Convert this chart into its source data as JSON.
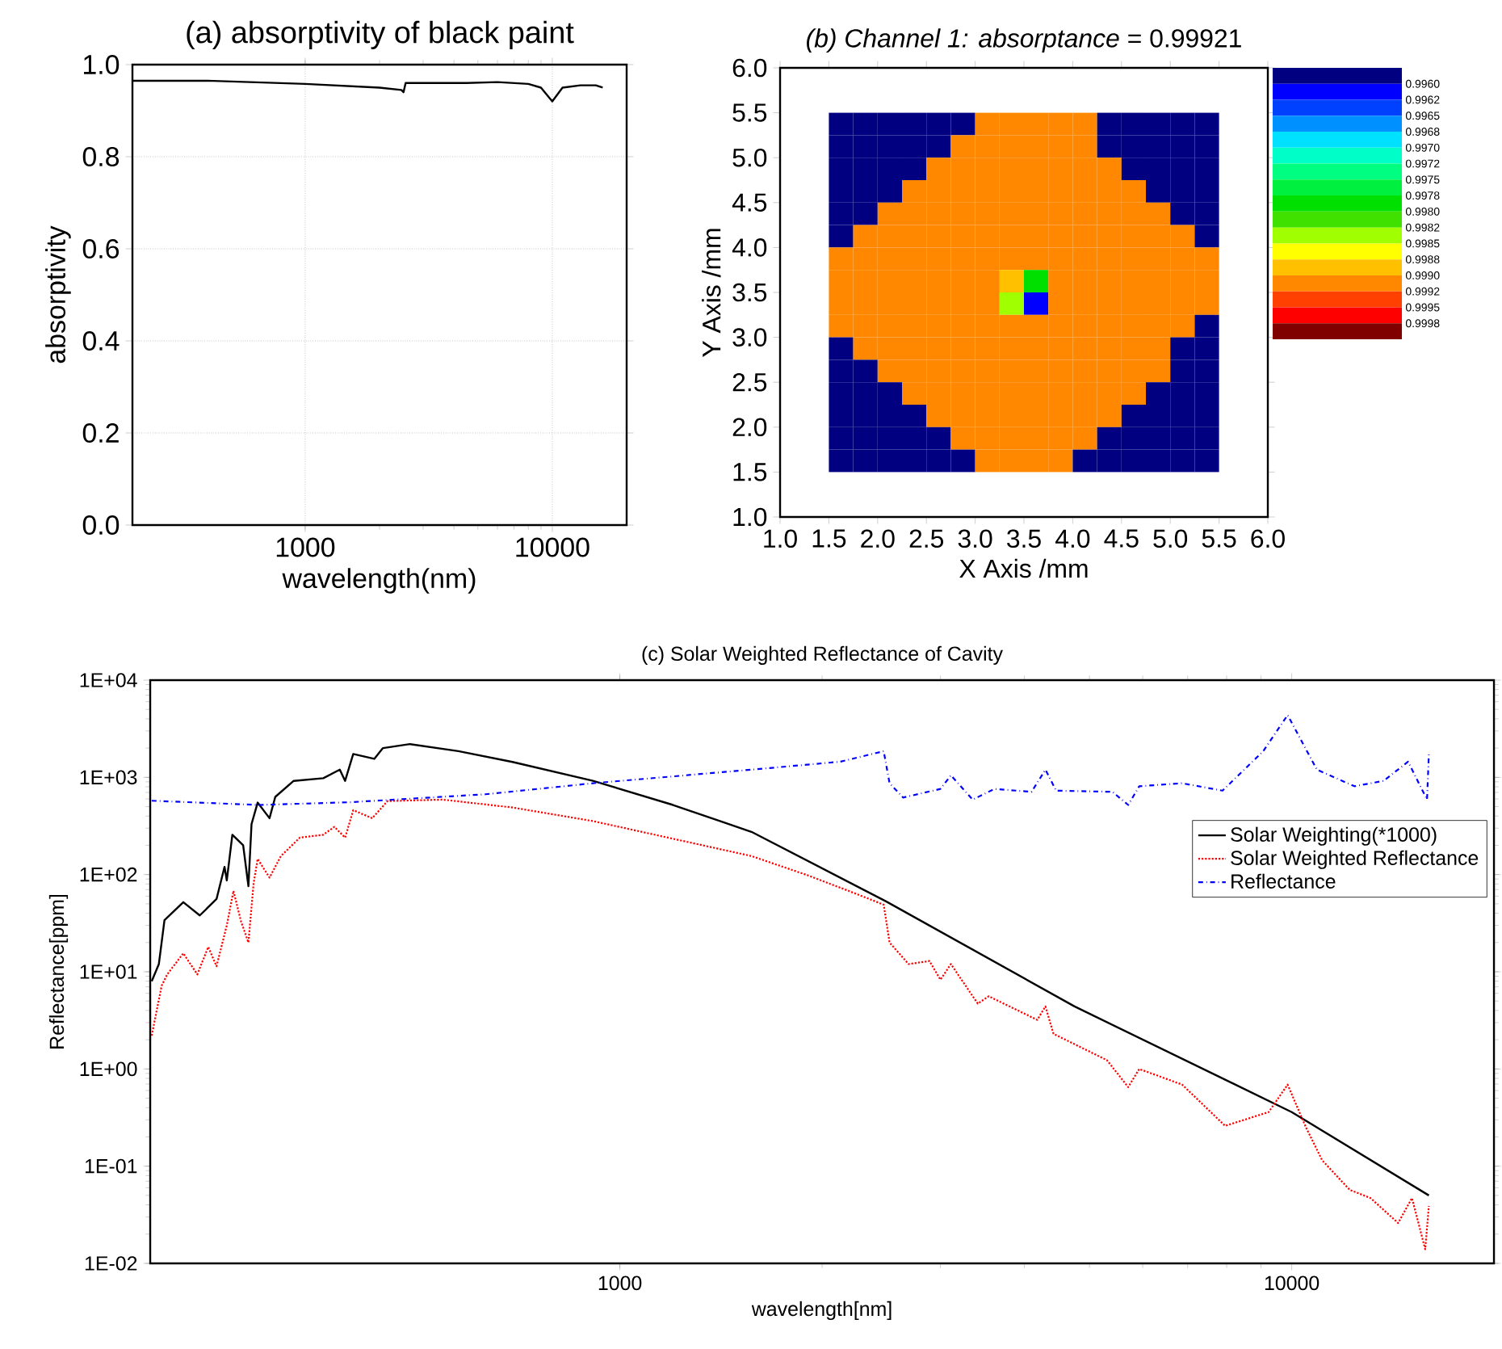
{
  "chart_data": [
    {
      "type": "line",
      "title": "(a) absorptivity of black paint",
      "xlabel": "wavelength(nm)",
      "ylabel": "absorptivity",
      "color": "#000000",
      "x": [
        200,
        400,
        1000,
        2000,
        2450,
        2500,
        2550,
        3000,
        4500,
        6000,
        8000,
        9000,
        10000,
        11000,
        13000,
        15000,
        16000
      ],
      "values": [
        0.965,
        0.965,
        0.958,
        0.95,
        0.945,
        0.94,
        0.96,
        0.96,
        0.96,
        0.962,
        0.958,
        0.95,
        0.92,
        0.95,
        0.955,
        0.955,
        0.95
      ],
      "xlim": [
        200,
        20000
      ],
      "ylim": [
        0,
        1
      ],
      "xticks": [
        1000,
        10000
      ],
      "yticks": [
        {
          "value": 0,
          "label": "0.0"
        },
        {
          "value": 0.2,
          "label": "0.2"
        },
        {
          "value": 0.4,
          "label": "0.4"
        },
        {
          "value": 0.6,
          "label": "0.6"
        },
        {
          "value": 0.8,
          "label": "0.8"
        },
        {
          "value": 1,
          "label": "1.0"
        }
      ],
      "log": "x",
      "grid": true
    },
    {
      "type": "heatmap",
      "title": "*(b) Channel 1: absorptance* = 0.99921",
      "xlabel": "X Axis /mm",
      "ylabel": "Y Axis /mm",
      "x": [
        1.625,
        1.875,
        2.125,
        2.375,
        2.625,
        2.875,
        3.125,
        3.375,
        3.625,
        3.875,
        4.125,
        4.375,
        4.625,
        4.875,
        5.125,
        5.375
      ],
      "y": [
        5.375,
        5.125,
        4.875,
        4.625,
        4.375,
        4.125,
        3.875,
        3.625,
        3.375,
        3.125,
        2.875,
        2.625,
        2.375,
        2.125,
        1.875,
        1.625
      ],
      "cells": [
        [
          0.9959,
          0.9959,
          0.9959,
          0.9959,
          0.9959,
          0.9959,
          0.9991,
          0.9991,
          0.9991,
          0.9991,
          0.9991,
          0.9959,
          0.9959,
          0.9959,
          0.9959,
          0.9959
        ],
        [
          0.9959,
          0.9959,
          0.9959,
          0.9959,
          0.9959,
          0.9991,
          0.9991,
          0.9991,
          0.9991,
          0.9991,
          0.9991,
          0.9959,
          0.9959,
          0.9959,
          0.9959,
          0.9959
        ],
        [
          0.9959,
          0.9959,
          0.9959,
          0.9959,
          0.9991,
          0.9991,
          0.9991,
          0.9991,
          0.9991,
          0.9991,
          0.9991,
          0.9991,
          0.9959,
          0.9959,
          0.9959,
          0.9959
        ],
        [
          0.9959,
          0.9959,
          0.9959,
          0.9991,
          0.9991,
          0.9991,
          0.9991,
          0.9991,
          0.9991,
          0.9991,
          0.9991,
          0.9991,
          0.9991,
          0.9959,
          0.9959,
          0.9959
        ],
        [
          0.9959,
          0.9959,
          0.9991,
          0.9991,
          0.9991,
          0.9991,
          0.9991,
          0.9991,
          0.9991,
          0.9991,
          0.9991,
          0.9991,
          0.9991,
          0.9991,
          0.9959,
          0.9959
        ],
        [
          0.9959,
          0.9991,
          0.9991,
          0.9991,
          0.9991,
          0.9991,
          0.9991,
          0.9991,
          0.9991,
          0.9991,
          0.9991,
          0.9991,
          0.9991,
          0.9991,
          0.9991,
          0.9959
        ],
        [
          0.9991,
          0.9991,
          0.9991,
          0.9991,
          0.9991,
          0.9991,
          0.9991,
          0.9991,
          0.9991,
          0.9991,
          0.9991,
          0.9991,
          0.9991,
          0.9991,
          0.9991,
          0.9991
        ],
        [
          0.9991,
          0.9991,
          0.9991,
          0.9991,
          0.9991,
          0.9991,
          0.9991,
          0.9989,
          0.9979,
          0.9991,
          0.9991,
          0.9991,
          0.9991,
          0.9991,
          0.9991,
          0.9991
        ],
        [
          0.9991,
          0.9991,
          0.9991,
          0.9991,
          0.9991,
          0.9991,
          0.9991,
          0.9984,
          0.9961,
          0.9991,
          0.9991,
          0.9991,
          0.9991,
          0.9991,
          0.9991,
          0.9991
        ],
        [
          0.9991,
          0.9991,
          0.9991,
          0.9991,
          0.9991,
          0.9991,
          0.9991,
          0.9991,
          0.9991,
          0.9991,
          0.9991,
          0.9991,
          0.9991,
          0.9991,
          0.9991,
          0.9959
        ],
        [
          0.9959,
          0.9991,
          0.9991,
          0.9991,
          0.9991,
          0.9991,
          0.9991,
          0.9991,
          0.9991,
          0.9991,
          0.9991,
          0.9991,
          0.9991,
          0.9991,
          0.9959,
          0.9959
        ],
        [
          0.9959,
          0.9959,
          0.9991,
          0.9991,
          0.9991,
          0.9991,
          0.9991,
          0.9991,
          0.9991,
          0.9991,
          0.9991,
          0.9991,
          0.9991,
          0.9991,
          0.9959,
          0.9959
        ],
        [
          0.9959,
          0.9959,
          0.9959,
          0.9991,
          0.9991,
          0.9991,
          0.9991,
          0.9991,
          0.9991,
          0.9991,
          0.9991,
          0.9991,
          0.9991,
          0.9959,
          0.9959,
          0.9959
        ],
        [
          0.9959,
          0.9959,
          0.9959,
          0.9959,
          0.9991,
          0.9991,
          0.9991,
          0.9991,
          0.9991,
          0.9991,
          0.9991,
          0.9991,
          0.9959,
          0.9959,
          0.9959,
          0.9959
        ],
        [
          0.9959,
          0.9959,
          0.9959,
          0.9959,
          0.9959,
          0.9991,
          0.9991,
          0.9991,
          0.9991,
          0.9991,
          0.9991,
          0.9959,
          0.9959,
          0.9959,
          0.9959,
          0.9959
        ],
        [
          0.9959,
          0.9959,
          0.9959,
          0.9959,
          0.9959,
          0.9959,
          0.9991,
          0.9991,
          0.9991,
          0.9991,
          0.9959,
          0.9959,
          0.9959,
          0.9959,
          0.9959,
          0.9959
        ]
      ],
      "clim": [
        0.99575,
        1.0
      ],
      "cticks": [
        {
          "value": 0.996,
          "label": "0.9960"
        },
        {
          "value": 0.99625,
          "label": "0.9962"
        },
        {
          "value": 0.9965,
          "label": "0.9965"
        },
        {
          "value": 0.99675,
          "label": "0.9968"
        },
        {
          "value": 0.997,
          "label": "0.9970"
        },
        {
          "value": 0.99725,
          "label": "0.9972"
        },
        {
          "value": 0.9975,
          "label": "0.9975"
        },
        {
          "value": 0.99775,
          "label": "0.9978"
        },
        {
          "value": 0.998,
          "label": "0.9980"
        },
        {
          "value": 0.99825,
          "label": "0.9982"
        },
        {
          "value": 0.9985,
          "label": "0.9985"
        },
        {
          "value": 0.99875,
          "label": "0.9988"
        },
        {
          "value": 0.999,
          "label": "0.9990"
        },
        {
          "value": 0.99925,
          "label": "0.9992"
        },
        {
          "value": 0.9995,
          "label": "0.9995"
        },
        {
          "value": 0.99975,
          "label": "0.9998"
        }
      ],
      "xlim": [
        1,
        6
      ],
      "ylim": [
        1,
        6
      ],
      "xticks": [
        {
          "value": 1,
          "label": "1.0"
        },
        {
          "value": 1.5,
          "label": "1.5"
        },
        {
          "value": 2,
          "label": "2.0"
        },
        {
          "value": 2.5,
          "label": "2.5"
        },
        {
          "value": 3,
          "label": "3.0"
        },
        {
          "value": 3.5,
          "label": "3.5"
        },
        {
          "value": 4,
          "label": "4.0"
        },
        {
          "value": 4.5,
          "label": "4.5"
        },
        {
          "value": 5,
          "label": "5.0"
        },
        {
          "value": 5.5,
          "label": "5.5"
        },
        {
          "value": 6,
          "label": "6.0"
        }
      ],
      "yticks": [
        {
          "value": 1,
          "label": "1.0"
        },
        {
          "value": 1.5,
          "label": "1.5"
        },
        {
          "value": 2,
          "label": "2.0"
        },
        {
          "value": 2.5,
          "label": "2.5"
        },
        {
          "value": 3,
          "label": "3.0"
        },
        {
          "value": 3.5,
          "label": "3.5"
        },
        {
          "value": 4,
          "label": "4.0"
        },
        {
          "value": 4.5,
          "label": "4.5"
        },
        {
          "value": 5,
          "label": "5.0"
        },
        {
          "value": 5.5,
          "label": "5.5"
        },
        {
          "value": 6,
          "label": "6.0"
        }
      ]
    },
    {
      "type": "line",
      "title": "(c) Solar Weighted Reflectance of Cavity",
      "xlabel": "wavelength[nm]",
      "ylabel": "Reflectance[ppm]",
      "series": [
        {
          "name": "Solar Weighting(*1000)",
          "color": "#000000",
          "line_style": "solid",
          "x": [
            201,
            206,
            210,
            224,
            237,
            251,
            258,
            260,
            265,
            275,
            280,
            283,
            289,
            301,
            307,
            327,
            362,
            383,
            390,
            401,
            431,
            444,
            487,
            575,
            692,
            912,
            1200,
            1570,
            2490,
            4750,
            10000,
            16000
          ],
          "values": [
            8.0,
            12,
            34,
            52,
            38,
            56,
            120,
            87,
            257,
            200,
            76,
            330,
            550,
            380,
            630,
            920,
            980,
            1200,
            920,
            1740,
            1550,
            2000,
            2200,
            1860,
            1440,
            920,
            520,
            275,
            53,
            4.4,
            0.36,
            0.05
          ]
        },
        {
          "name": "Solar Weighted Reflectance",
          "color": "#ff0000",
          "line_style": "dotted",
          "x": [
            201,
            208,
            212,
            224,
            235,
            244,
            251,
            260,
            266,
            273,
            280,
            285,
            289,
            301,
            313,
            334,
            362,
            376,
            390,
            401,
            428,
            451,
            545,
            692,
            912,
            1570,
            1890,
            2190,
            2470,
            2520,
            2690,
            2890,
            3000,
            3110,
            3410,
            3540,
            4180,
            4300,
            4420,
            5310,
            5710,
            5930,
            6870,
            7960,
            9240,
            9860,
            10500,
            11100,
            12200,
            13100,
            14400,
            15100,
            15800,
            16000
          ],
          "values": [
            2.2,
            7.2,
            9.4,
            15.5,
            9.4,
            18,
            11.4,
            30,
            68,
            33,
            20,
            81,
            145,
            93,
            155,
            240,
            257,
            310,
            240,
            460,
            380,
            570,
            590,
            490,
            355,
            155,
            100,
            68,
            49,
            20,
            12,
            12.9,
            8.3,
            12,
            4.7,
            5.6,
            3.2,
            4.4,
            2.3,
            1.23,
            0.65,
            1.0,
            0.69,
            0.26,
            0.36,
            0.69,
            0.25,
            0.115,
            0.057,
            0.047,
            0.026,
            0.047,
            0.014,
            0.039
          ]
        },
        {
          "name": "Reflectance",
          "color": "#0000ff",
          "line_style": "dashdot",
          "x": [
            201,
            290,
            397,
            631,
            912,
            1570,
            2130,
            2470,
            2520,
            2640,
            3000,
            3110,
            3350,
            3610,
            4100,
            4300,
            4460,
            5410,
            5710,
            5930,
            6870,
            7890,
            9070,
            9860,
            10900,
            12400,
            13700,
            14900,
            15900,
            16000
          ],
          "values": [
            575,
            520,
            555,
            670,
            870,
            1200,
            1450,
            1860,
            870,
            620,
            760,
            1050,
            590,
            760,
            710,
            1200,
            730,
            710,
            520,
            810,
            870,
            730,
            1860,
            4370,
            1200,
            810,
            920,
            1450,
            590,
            1740
          ]
        }
      ],
      "xlim": [
        200,
        20000
      ],
      "ylim": [
        0.01,
        10000
      ],
      "xticks": [
        1000,
        10000
      ],
      "yticks": [
        {
          "value": 0.01,
          "label": "1E-02"
        },
        {
          "value": 0.1,
          "label": "1E-01"
        },
        {
          "value": 1,
          "label": "1E+00"
        },
        {
          "value": 10,
          "label": "1E+01"
        },
        {
          "value": 100,
          "label": "1E+02"
        },
        {
          "value": 1000,
          "label": "1E+03"
        },
        {
          "value": 10000,
          "label": "1E+04"
        }
      ],
      "log": "xy",
      "legend": "right"
    }
  ]
}
